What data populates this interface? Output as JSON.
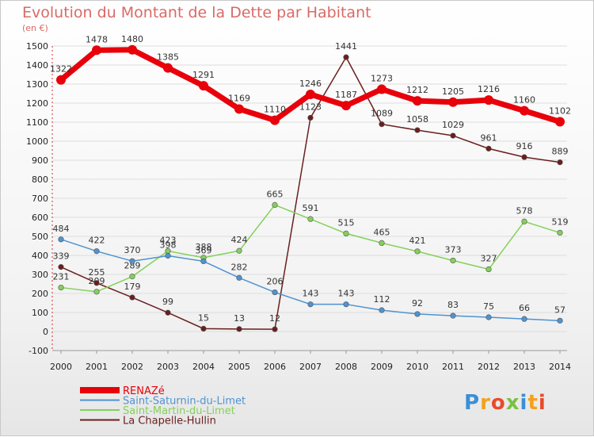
{
  "chart_data": {
    "type": "line",
    "title": "Evolution du Montant de la Dette par Habitant",
    "subtitle": "(en €)",
    "x": [
      "2000",
      "2001",
      "2002",
      "2003",
      "2004",
      "2005",
      "2006",
      "2007",
      "2008",
      "2009",
      "2010",
      "2011",
      "2012",
      "2013",
      "2014"
    ],
    "ylim": [
      -100,
      1500
    ],
    "yticks": [
      -100,
      0,
      100,
      200,
      300,
      400,
      500,
      600,
      700,
      800,
      900,
      1000,
      1100,
      1200,
      1300,
      1400,
      1500
    ],
    "grid": "horizontal",
    "legend_position": "bottom-left",
    "series": [
      {
        "name": "RENAZé",
        "color": "#e8000a",
        "values": [
          1322,
          1478,
          1480,
          1385,
          1291,
          1169,
          1110,
          1246,
          1187,
          1273,
          1212,
          1205,
          1216,
          1160,
          1102
        ]
      },
      {
        "name": "Saint-Saturnin-du-Limet",
        "color": "#4f93d0",
        "values": [
          484,
          422,
          370,
          398,
          369,
          282,
          206,
          143,
          143,
          112,
          92,
          83,
          75,
          66,
          57
        ]
      },
      {
        "name": "Saint-Martin-du-Limet",
        "color": "#84d05a",
        "values": [
          231,
          209,
          289,
          423,
          388,
          424,
          665,
          591,
          515,
          465,
          421,
          373,
          327,
          578,
          519
        ]
      },
      {
        "name": "La Chapelle-Hullin",
        "color": "#6b1e1e",
        "values": [
          339,
          255,
          179,
          99,
          15,
          13,
          12,
          1123,
          1441,
          1089,
          1058,
          1029,
          961,
          916,
          889
        ]
      }
    ]
  },
  "logo": {
    "text": "Proxiti",
    "colors": [
      "#3a8fd6",
      "#f2a21b",
      "#e84b2a",
      "#7bc043",
      "#3a8fd6",
      "#f2a21b",
      "#e84b2a"
    ]
  }
}
